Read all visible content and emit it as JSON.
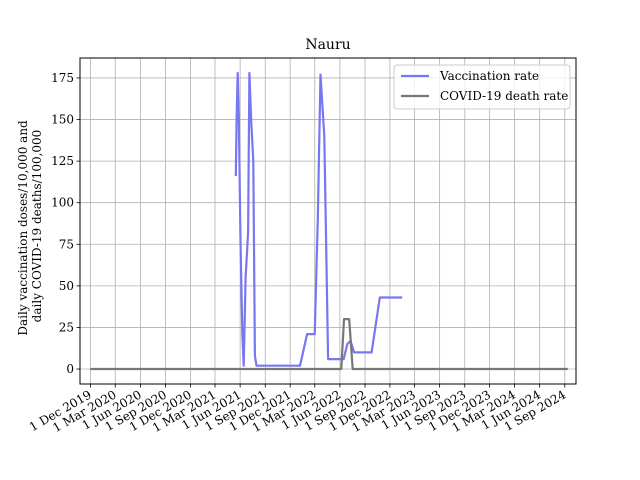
{
  "chart_data": {
    "type": "line",
    "title": "Nauru",
    "ylabel": "Daily vaccination doses/10,000 and\ndaily COVID-19 deaths/100,000",
    "xlabel": "",
    "x_axis": {
      "kind": "date",
      "range": [
        "2019-10-24",
        "2024-10-12"
      ],
      "ticks": [
        "2019-12-01",
        "2020-03-01",
        "2020-06-01",
        "2020-09-01",
        "2020-12-01",
        "2021-03-01",
        "2021-06-01",
        "2021-09-01",
        "2021-12-01",
        "2022-03-01",
        "2022-06-01",
        "2022-09-01",
        "2022-12-01",
        "2023-03-01",
        "2023-06-01",
        "2023-09-01",
        "2023-12-01",
        "2024-03-01",
        "2024-06-01",
        "2024-09-01"
      ],
      "tick_labels": [
        "1 Dec 2019",
        "1 Mar 2020",
        "1 Jun 2020",
        "1 Sep 2020",
        "1 Dec 2020",
        "1 Mar 2021",
        "1 Jun 2021",
        "1 Sep 2021",
        "1 Dec 2021",
        "1 Mar 2022",
        "1 Jun 2022",
        "1 Sep 2022",
        "1 Dec 2022",
        "1 Mar 2023",
        "1 Jun 2023",
        "1 Sep 2023",
        "1 Dec 2023",
        "1 Mar 2024",
        "1 Jun 2024",
        "1 Sep 2024"
      ]
    },
    "y_axis": {
      "range": [
        -9,
        187
      ],
      "ticks": [
        0,
        25,
        50,
        75,
        100,
        125,
        150,
        175
      ]
    },
    "grid": true,
    "legend": "upper-right",
    "series": [
      {
        "name": "Vaccination rate",
        "color": "#7777f2",
        "points": [
          [
            "2021-05-16",
            116
          ],
          [
            "2021-05-19",
            150
          ],
          [
            "2021-05-23",
            178
          ],
          [
            "2021-05-27",
            152
          ],
          [
            "2021-06-02",
            80
          ],
          [
            "2021-06-09",
            22
          ],
          [
            "2021-06-14",
            2
          ],
          [
            "2021-06-21",
            55
          ],
          [
            "2021-06-30",
            82
          ],
          [
            "2021-07-05",
            178
          ],
          [
            "2021-07-12",
            148
          ],
          [
            "2021-07-19",
            125
          ],
          [
            "2021-07-25",
            8
          ],
          [
            "2021-07-31",
            2
          ],
          [
            "2021-09-01",
            2
          ],
          [
            "2022-01-06",
            2
          ],
          [
            "2022-02-01",
            21
          ],
          [
            "2022-03-01",
            21
          ],
          [
            "2022-03-12",
            90
          ],
          [
            "2022-03-22",
            177
          ],
          [
            "2022-04-05",
            140
          ],
          [
            "2022-04-19",
            6
          ],
          [
            "2022-06-15",
            6
          ],
          [
            "2022-06-28",
            15
          ],
          [
            "2022-07-10",
            17
          ],
          [
            "2022-07-23",
            10
          ],
          [
            "2022-09-25",
            10
          ],
          [
            "2022-10-25",
            43
          ],
          [
            "2023-01-15",
            43
          ]
        ]
      },
      {
        "name": "COVID-19 death rate",
        "color": "#777777",
        "points": [
          [
            "2019-12-01",
            0
          ],
          [
            "2022-06-06",
            0
          ],
          [
            "2022-06-16",
            30
          ],
          [
            "2022-07-05",
            30
          ],
          [
            "2022-07-18",
            0
          ],
          [
            "2024-09-12",
            0
          ]
        ]
      }
    ]
  }
}
